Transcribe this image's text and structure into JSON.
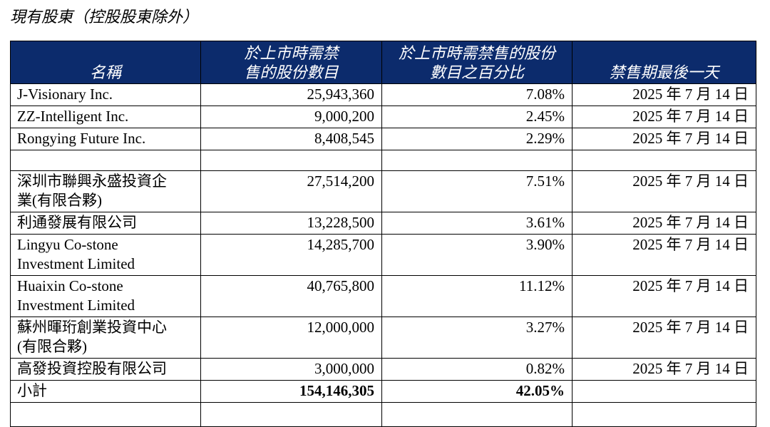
{
  "title": "現有股東（控股股東除外）",
  "table": {
    "header": [
      [
        "名稱"
      ],
      [
        "於上市時需禁",
        "售的股份數目"
      ],
      [
        "於上市時需禁售的股份",
        "數目之百分比"
      ],
      [
        "禁售期最後一天"
      ]
    ],
    "groups": [
      [
        [
          [
            "J-Visionary Inc."
          ],
          "25,943,360",
          "7.08%",
          "2025 年 7 月 14 日"
        ],
        [
          [
            "ZZ-Intelligent Inc."
          ],
          "9,000,200",
          "2.45%",
          "2025 年 7 月 14 日"
        ],
        [
          [
            "Rongying Future Inc."
          ],
          "8,408,545",
          "2.29%",
          "2025 年 7 月 14 日"
        ]
      ],
      [
        [
          [
            "深圳市聯興永盛投資企",
            "業(有限合夥)"
          ],
          "27,514,200",
          "7.51%",
          "2025 年 7 月 14 日"
        ],
        [
          [
            "利通發展有限公司"
          ],
          "13,228,500",
          "3.61%",
          "2025 年 7 月 14 日"
        ],
        [
          [
            "Lingyu Co-stone",
            "Investment Limited"
          ],
          "14,285,700",
          "3.90%",
          "2025 年 7 月 14 日"
        ],
        [
          [
            "Huaixin Co-stone",
            "Investment Limited"
          ],
          "40,765,800",
          "11.12%",
          "2025 年 7 月 14 日"
        ],
        [
          [
            "蘇州暉珩創業投資中心",
            "(有限合夥)"
          ],
          "12,000,000",
          "3.27%",
          "2025 年 7 月 14 日"
        ],
        [
          [
            "高發投資控股有限公司"
          ],
          "3,000,000",
          "0.82%",
          "2025 年 7 月 14 日"
        ]
      ]
    ],
    "subtotal": [
      "小計",
      "154,146,305",
      "42.05%"
    ]
  }
}
